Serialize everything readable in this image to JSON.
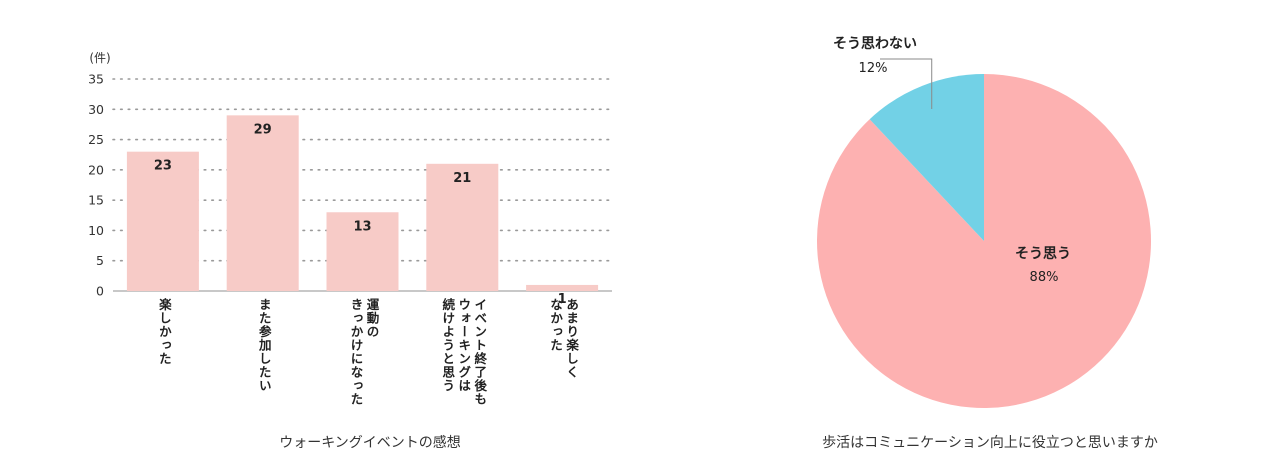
{
  "chart_data": [
    {
      "type": "bar",
      "title": "ウォーキングイベントの感想",
      "ylabel": "(件)",
      "ylim": [
        0,
        35
      ],
      "yticks": [
        0,
        5,
        10,
        15,
        20,
        25,
        30,
        35
      ],
      "grid": true,
      "categories": [
        "楽しかった",
        "また参加したい",
        "運動の\nきっかけになった",
        "イベント終了後も\nウォーキングは\n続けようと思う",
        "あまり楽しく\nなかった"
      ],
      "values": [
        23,
        29,
        13,
        21,
        1
      ],
      "color": "#f7cbc7"
    },
    {
      "type": "pie",
      "title": "歩活はコミュニケーション向上に役立つと思いますか",
      "slices": [
        {
          "label": "そう思う",
          "value": 88,
          "display": "88%",
          "color": "#fdb1b1"
        },
        {
          "label": "そう思わない",
          "value": 12,
          "display": "12%",
          "color": "#72d1e6"
        }
      ]
    }
  ]
}
